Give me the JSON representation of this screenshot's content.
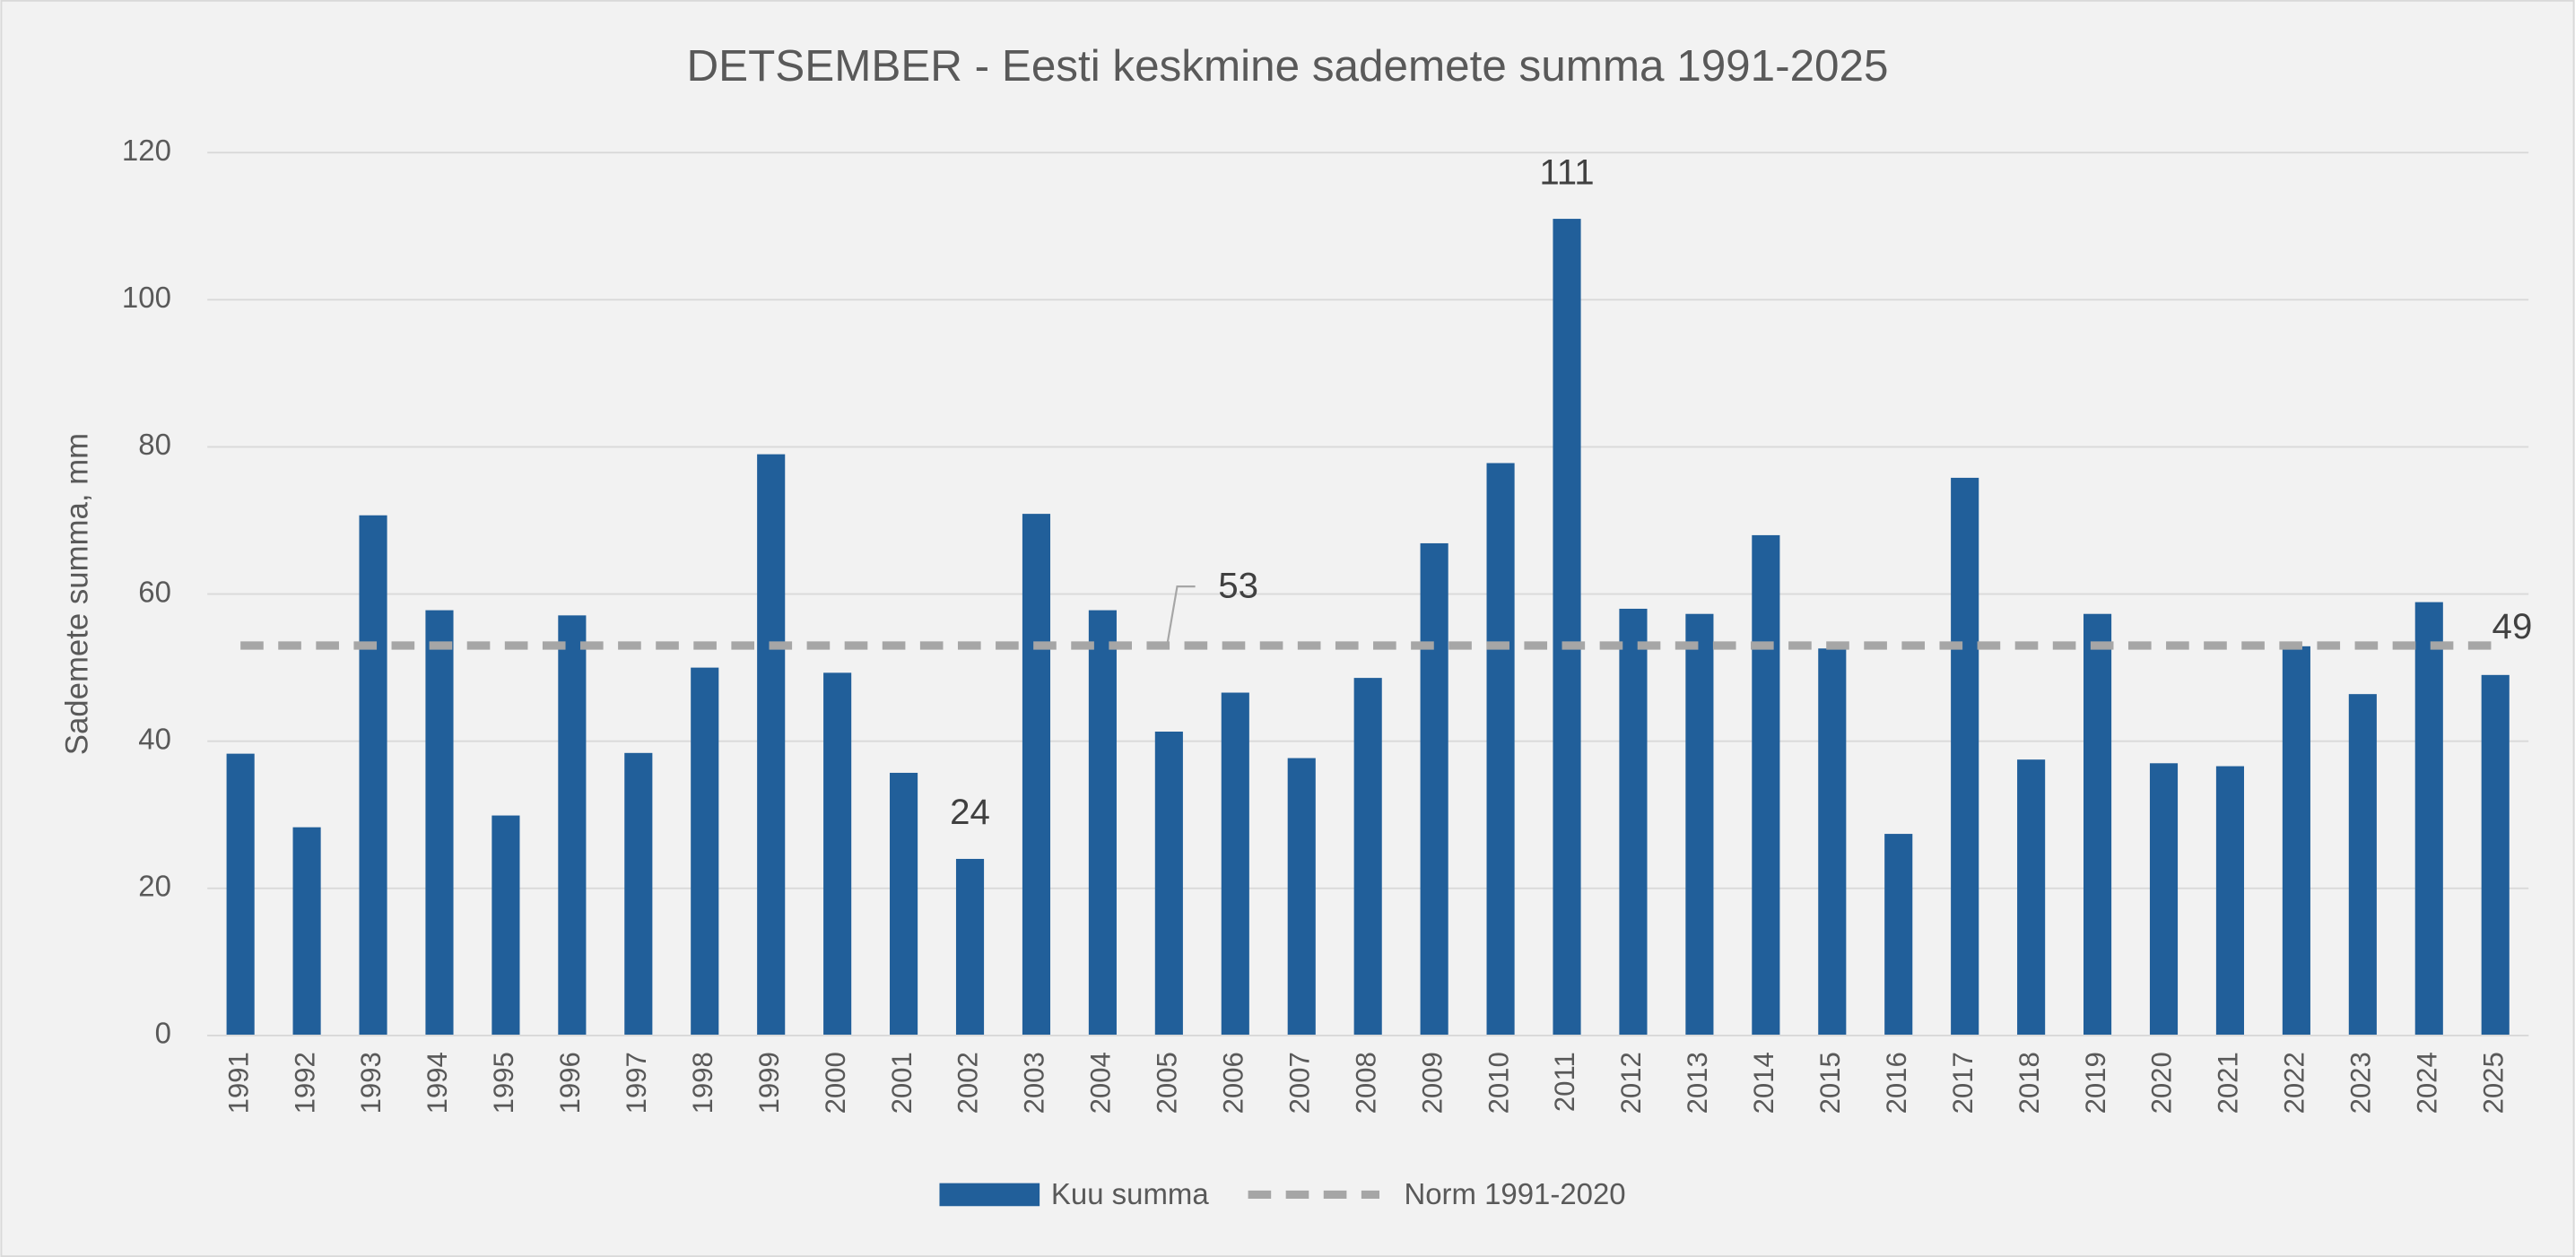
{
  "chart_data": {
    "type": "bar",
    "title": "DETSEMBER - Eesti keskmine sademete summa 1991-2025",
    "y_label": "Sademete summa, mm",
    "categories": [
      "1991",
      "1992",
      "1993",
      "1994",
      "1995",
      "1996",
      "1997",
      "1998",
      "1999",
      "2000",
      "2001",
      "2002",
      "2003",
      "2004",
      "2005",
      "2006",
      "2007",
      "2008",
      "2009",
      "2010",
      "2011",
      "2012",
      "2013",
      "2014",
      "2015",
      "2016",
      "2017",
      "2018",
      "2019",
      "2020",
      "2021",
      "2022",
      "2023",
      "2024",
      "2025"
    ],
    "series": [
      {
        "name": "Kuu summa",
        "type": "bar",
        "color": "#215f9a",
        "values": [
          38.3,
          28.3,
          70.7,
          57.8,
          29.9,
          57.1,
          38.4,
          50.0,
          79.0,
          49.3,
          35.7,
          24,
          70.9,
          57.8,
          41.3,
          46.6,
          37.7,
          48.6,
          66.9,
          77.8,
          111,
          58.0,
          57.3,
          68.0,
          52.6,
          27.4,
          75.8,
          37.5,
          57.3,
          37.0,
          36.6,
          52.9,
          46.4,
          58.9,
          49
        ]
      },
      {
        "name": "Norm 1991-2020",
        "type": "line",
        "color": "#a6a6a6",
        "values": [
          53,
          53,
          53,
          53,
          53,
          53,
          53,
          53,
          53,
          53,
          53,
          53,
          53,
          53,
          53,
          53,
          53,
          53,
          53,
          53,
          53,
          53,
          53,
          53,
          53,
          53,
          53,
          53,
          53,
          53,
          53,
          53,
          53,
          53,
          53
        ]
      }
    ],
    "ylim": [
      0,
      120
    ],
    "yticks": [
      0,
      20,
      40,
      60,
      80,
      100,
      120
    ],
    "grid": true
  }
}
